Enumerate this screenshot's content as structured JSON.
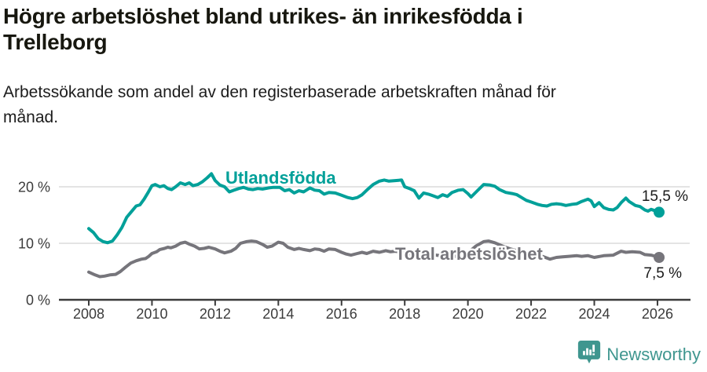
{
  "chart_data": {
    "type": "line",
    "title": "Högre arbetslöshet bland utrikes- än inrikesfödda i Trelleborg",
    "subtitle": "Arbetssökande som andel av den registerbaserade arbetskraften månad för månad.",
    "unit": "%",
    "x_axis": {
      "ticks": [
        2008,
        2010,
        2012,
        2014,
        2016,
        2018,
        2020,
        2022,
        2024,
        2026
      ],
      "range": [
        2007.1,
        2027.1
      ],
      "grid": false
    },
    "y_axis": {
      "ticks": [
        {
          "value": 0,
          "label": "0 %"
        },
        {
          "value": 10,
          "label": "10 %"
        },
        {
          "value": 20,
          "label": "20 %"
        }
      ],
      "range": [
        0,
        24
      ],
      "grid": true
    },
    "style": {
      "grid_color": "#dcdcdc",
      "axis_color": "#3b3b3b",
      "tick_color": "#3b3b3b",
      "value_label_color": "#1a1a1a",
      "background": "#ffffff"
    },
    "legend_position": "inline-labels",
    "series": [
      {
        "name": "Utlandsfödda",
        "color": "#00a099",
        "end_label": "15,5 %",
        "end_value": 15.5,
        "points": [
          [
            2008.0,
            12.6
          ],
          [
            2008.15,
            11.9
          ],
          [
            2008.3,
            10.8
          ],
          [
            2008.45,
            10.3
          ],
          [
            2008.6,
            10.1
          ],
          [
            2008.75,
            10.4
          ],
          [
            2008.9,
            11.5
          ],
          [
            2009.05,
            12.8
          ],
          [
            2009.2,
            14.6
          ],
          [
            2009.35,
            15.6
          ],
          [
            2009.5,
            16.6
          ],
          [
            2009.62,
            16.8
          ],
          [
            2009.75,
            17.8
          ],
          [
            2009.88,
            19.0
          ],
          [
            2010.0,
            20.2
          ],
          [
            2010.1,
            20.4
          ],
          [
            2010.25,
            20.0
          ],
          [
            2010.38,
            20.2
          ],
          [
            2010.5,
            19.7
          ],
          [
            2010.62,
            19.5
          ],
          [
            2010.75,
            20.0
          ],
          [
            2010.9,
            20.7
          ],
          [
            2011.05,
            20.4
          ],
          [
            2011.18,
            20.7
          ],
          [
            2011.3,
            20.2
          ],
          [
            2011.45,
            20.4
          ],
          [
            2011.6,
            20.9
          ],
          [
            2011.75,
            21.6
          ],
          [
            2011.88,
            22.3
          ],
          [
            2012.0,
            21.1
          ],
          [
            2012.15,
            20.3
          ],
          [
            2012.3,
            20.0
          ],
          [
            2012.45,
            19.1
          ],
          [
            2012.6,
            19.4
          ],
          [
            2012.75,
            19.7
          ],
          [
            2012.9,
            19.9
          ],
          [
            2013.05,
            19.6
          ],
          [
            2013.2,
            19.5
          ],
          [
            2013.35,
            19.7
          ],
          [
            2013.5,
            19.6
          ],
          [
            2013.7,
            19.8
          ],
          [
            2013.85,
            19.9
          ],
          [
            2014.05,
            19.9
          ],
          [
            2014.2,
            19.3
          ],
          [
            2014.35,
            19.5
          ],
          [
            2014.5,
            18.9
          ],
          [
            2014.65,
            19.3
          ],
          [
            2014.8,
            19.1
          ],
          [
            2015.0,
            19.8
          ],
          [
            2015.15,
            19.4
          ],
          [
            2015.3,
            19.3
          ],
          [
            2015.45,
            18.7
          ],
          [
            2015.6,
            19.0
          ],
          [
            2015.8,
            18.9
          ],
          [
            2016.0,
            18.5
          ],
          [
            2016.2,
            18.1
          ],
          [
            2016.35,
            17.9
          ],
          [
            2016.5,
            18.1
          ],
          [
            2016.65,
            18.6
          ],
          [
            2016.8,
            19.4
          ],
          [
            2017.0,
            20.4
          ],
          [
            2017.2,
            21.0
          ],
          [
            2017.35,
            21.2
          ],
          [
            2017.5,
            21.0
          ],
          [
            2017.7,
            21.1
          ],
          [
            2017.9,
            21.2
          ],
          [
            2018.0,
            20.0
          ],
          [
            2018.15,
            19.7
          ],
          [
            2018.3,
            19.3
          ],
          [
            2018.45,
            18.0
          ],
          [
            2018.6,
            18.9
          ],
          [
            2018.75,
            18.7
          ],
          [
            2018.9,
            18.4
          ],
          [
            2019.05,
            18.1
          ],
          [
            2019.2,
            18.6
          ],
          [
            2019.35,
            18.3
          ],
          [
            2019.5,
            19.0
          ],
          [
            2019.7,
            19.4
          ],
          [
            2019.85,
            19.5
          ],
          [
            2020.0,
            18.8
          ],
          [
            2020.1,
            18.2
          ],
          [
            2020.3,
            19.3
          ],
          [
            2020.5,
            20.4
          ],
          [
            2020.7,
            20.3
          ],
          [
            2020.85,
            20.1
          ],
          [
            2021.0,
            19.5
          ],
          [
            2021.2,
            19.0
          ],
          [
            2021.4,
            18.8
          ],
          [
            2021.55,
            18.6
          ],
          [
            2021.7,
            18.1
          ],
          [
            2021.85,
            17.6
          ],
          [
            2022.0,
            17.3
          ],
          [
            2022.2,
            16.9
          ],
          [
            2022.35,
            16.7
          ],
          [
            2022.5,
            16.6
          ],
          [
            2022.65,
            16.9
          ],
          [
            2022.8,
            17.0
          ],
          [
            2022.95,
            16.9
          ],
          [
            2023.1,
            16.7
          ],
          [
            2023.3,
            16.9
          ],
          [
            2023.45,
            17.0
          ],
          [
            2023.6,
            17.4
          ],
          [
            2023.8,
            17.8
          ],
          [
            2023.9,
            17.5
          ],
          [
            2024.0,
            16.5
          ],
          [
            2024.15,
            17.2
          ],
          [
            2024.3,
            16.3
          ],
          [
            2024.45,
            16.0
          ],
          [
            2024.6,
            15.9
          ],
          [
            2024.72,
            16.3
          ],
          [
            2024.85,
            17.2
          ],
          [
            2025.0,
            18.0
          ],
          [
            2025.1,
            17.4
          ],
          [
            2025.3,
            16.7
          ],
          [
            2025.45,
            16.5
          ],
          [
            2025.6,
            15.9
          ],
          [
            2025.7,
            15.7
          ],
          [
            2025.8,
            16.0
          ],
          [
            2025.9,
            15.8
          ],
          [
            2026.05,
            15.5
          ]
        ]
      },
      {
        "name": "Total arbetslöshet",
        "color": "#76757b",
        "end_label": "7,5 %",
        "end_value": 7.5,
        "points": [
          [
            2008.0,
            4.9
          ],
          [
            2008.2,
            4.4
          ],
          [
            2008.35,
            4.1
          ],
          [
            2008.5,
            4.2
          ],
          [
            2008.67,
            4.4
          ],
          [
            2008.85,
            4.5
          ],
          [
            2009.0,
            5.0
          ],
          [
            2009.17,
            5.8
          ],
          [
            2009.33,
            6.5
          ],
          [
            2009.5,
            6.9
          ],
          [
            2009.67,
            7.2
          ],
          [
            2009.8,
            7.3
          ],
          [
            2009.9,
            7.7
          ],
          [
            2010.0,
            8.2
          ],
          [
            2010.15,
            8.5
          ],
          [
            2010.25,
            8.9
          ],
          [
            2010.4,
            9.1
          ],
          [
            2010.5,
            9.3
          ],
          [
            2010.6,
            9.2
          ],
          [
            2010.75,
            9.5
          ],
          [
            2010.9,
            10.0
          ],
          [
            2011.05,
            10.2
          ],
          [
            2011.2,
            9.8
          ],
          [
            2011.35,
            9.5
          ],
          [
            2011.5,
            9.0
          ],
          [
            2011.65,
            9.1
          ],
          [
            2011.8,
            9.3
          ],
          [
            2012.0,
            9.0
          ],
          [
            2012.15,
            8.6
          ],
          [
            2012.3,
            8.3
          ],
          [
            2012.5,
            8.6
          ],
          [
            2012.65,
            9.1
          ],
          [
            2012.8,
            10.0
          ],
          [
            2013.0,
            10.3
          ],
          [
            2013.15,
            10.4
          ],
          [
            2013.3,
            10.3
          ],
          [
            2013.5,
            9.8
          ],
          [
            2013.65,
            9.3
          ],
          [
            2013.8,
            9.5
          ],
          [
            2014.0,
            10.2
          ],
          [
            2014.15,
            10.0
          ],
          [
            2014.3,
            9.3
          ],
          [
            2014.5,
            8.9
          ],
          [
            2014.65,
            9.1
          ],
          [
            2014.8,
            8.9
          ],
          [
            2015.0,
            8.7
          ],
          [
            2015.15,
            9.0
          ],
          [
            2015.3,
            8.9
          ],
          [
            2015.45,
            8.6
          ],
          [
            2015.6,
            9.0
          ],
          [
            2015.8,
            8.9
          ],
          [
            2016.0,
            8.4
          ],
          [
            2016.15,
            8.1
          ],
          [
            2016.3,
            7.9
          ],
          [
            2016.5,
            8.2
          ],
          [
            2016.65,
            8.4
          ],
          [
            2016.8,
            8.2
          ],
          [
            2017.0,
            8.6
          ],
          [
            2017.2,
            8.4
          ],
          [
            2017.4,
            8.7
          ],
          [
            2017.55,
            8.5
          ],
          [
            2017.7,
            8.6
          ],
          [
            2018.0,
            8.3
          ],
          [
            2018.3,
            8.0
          ],
          [
            2018.6,
            8.1
          ],
          [
            2019.0,
            7.9
          ],
          [
            2019.3,
            7.7
          ],
          [
            2019.6,
            7.7
          ],
          [
            2019.85,
            7.9
          ],
          [
            2020.0,
            8.3
          ],
          [
            2020.25,
            9.5
          ],
          [
            2020.5,
            10.3
          ],
          [
            2020.65,
            10.4
          ],
          [
            2020.85,
            10.1
          ],
          [
            2021.1,
            9.5
          ],
          [
            2021.35,
            9.0
          ],
          [
            2021.6,
            8.6
          ],
          [
            2021.85,
            8.3
          ],
          [
            2022.1,
            8.0
          ],
          [
            2022.3,
            7.8
          ],
          [
            2022.45,
            7.5
          ],
          [
            2022.6,
            7.2
          ],
          [
            2022.8,
            7.5
          ],
          [
            2023.0,
            7.6
          ],
          [
            2023.2,
            7.7
          ],
          [
            2023.45,
            7.8
          ],
          [
            2023.6,
            7.7
          ],
          [
            2023.8,
            7.8
          ],
          [
            2024.0,
            7.5
          ],
          [
            2024.3,
            7.8
          ],
          [
            2024.6,
            7.9
          ],
          [
            2024.85,
            8.6
          ],
          [
            2025.0,
            8.4
          ],
          [
            2025.2,
            8.5
          ],
          [
            2025.45,
            8.4
          ],
          [
            2025.6,
            8.0
          ],
          [
            2025.8,
            7.9
          ],
          [
            2026.05,
            7.5
          ]
        ]
      }
    ]
  },
  "footer": {
    "brand": "Newsworthy",
    "brand_color": "#3f968f",
    "logo_icon": "newsworthy-bubble-barchart-icon"
  }
}
